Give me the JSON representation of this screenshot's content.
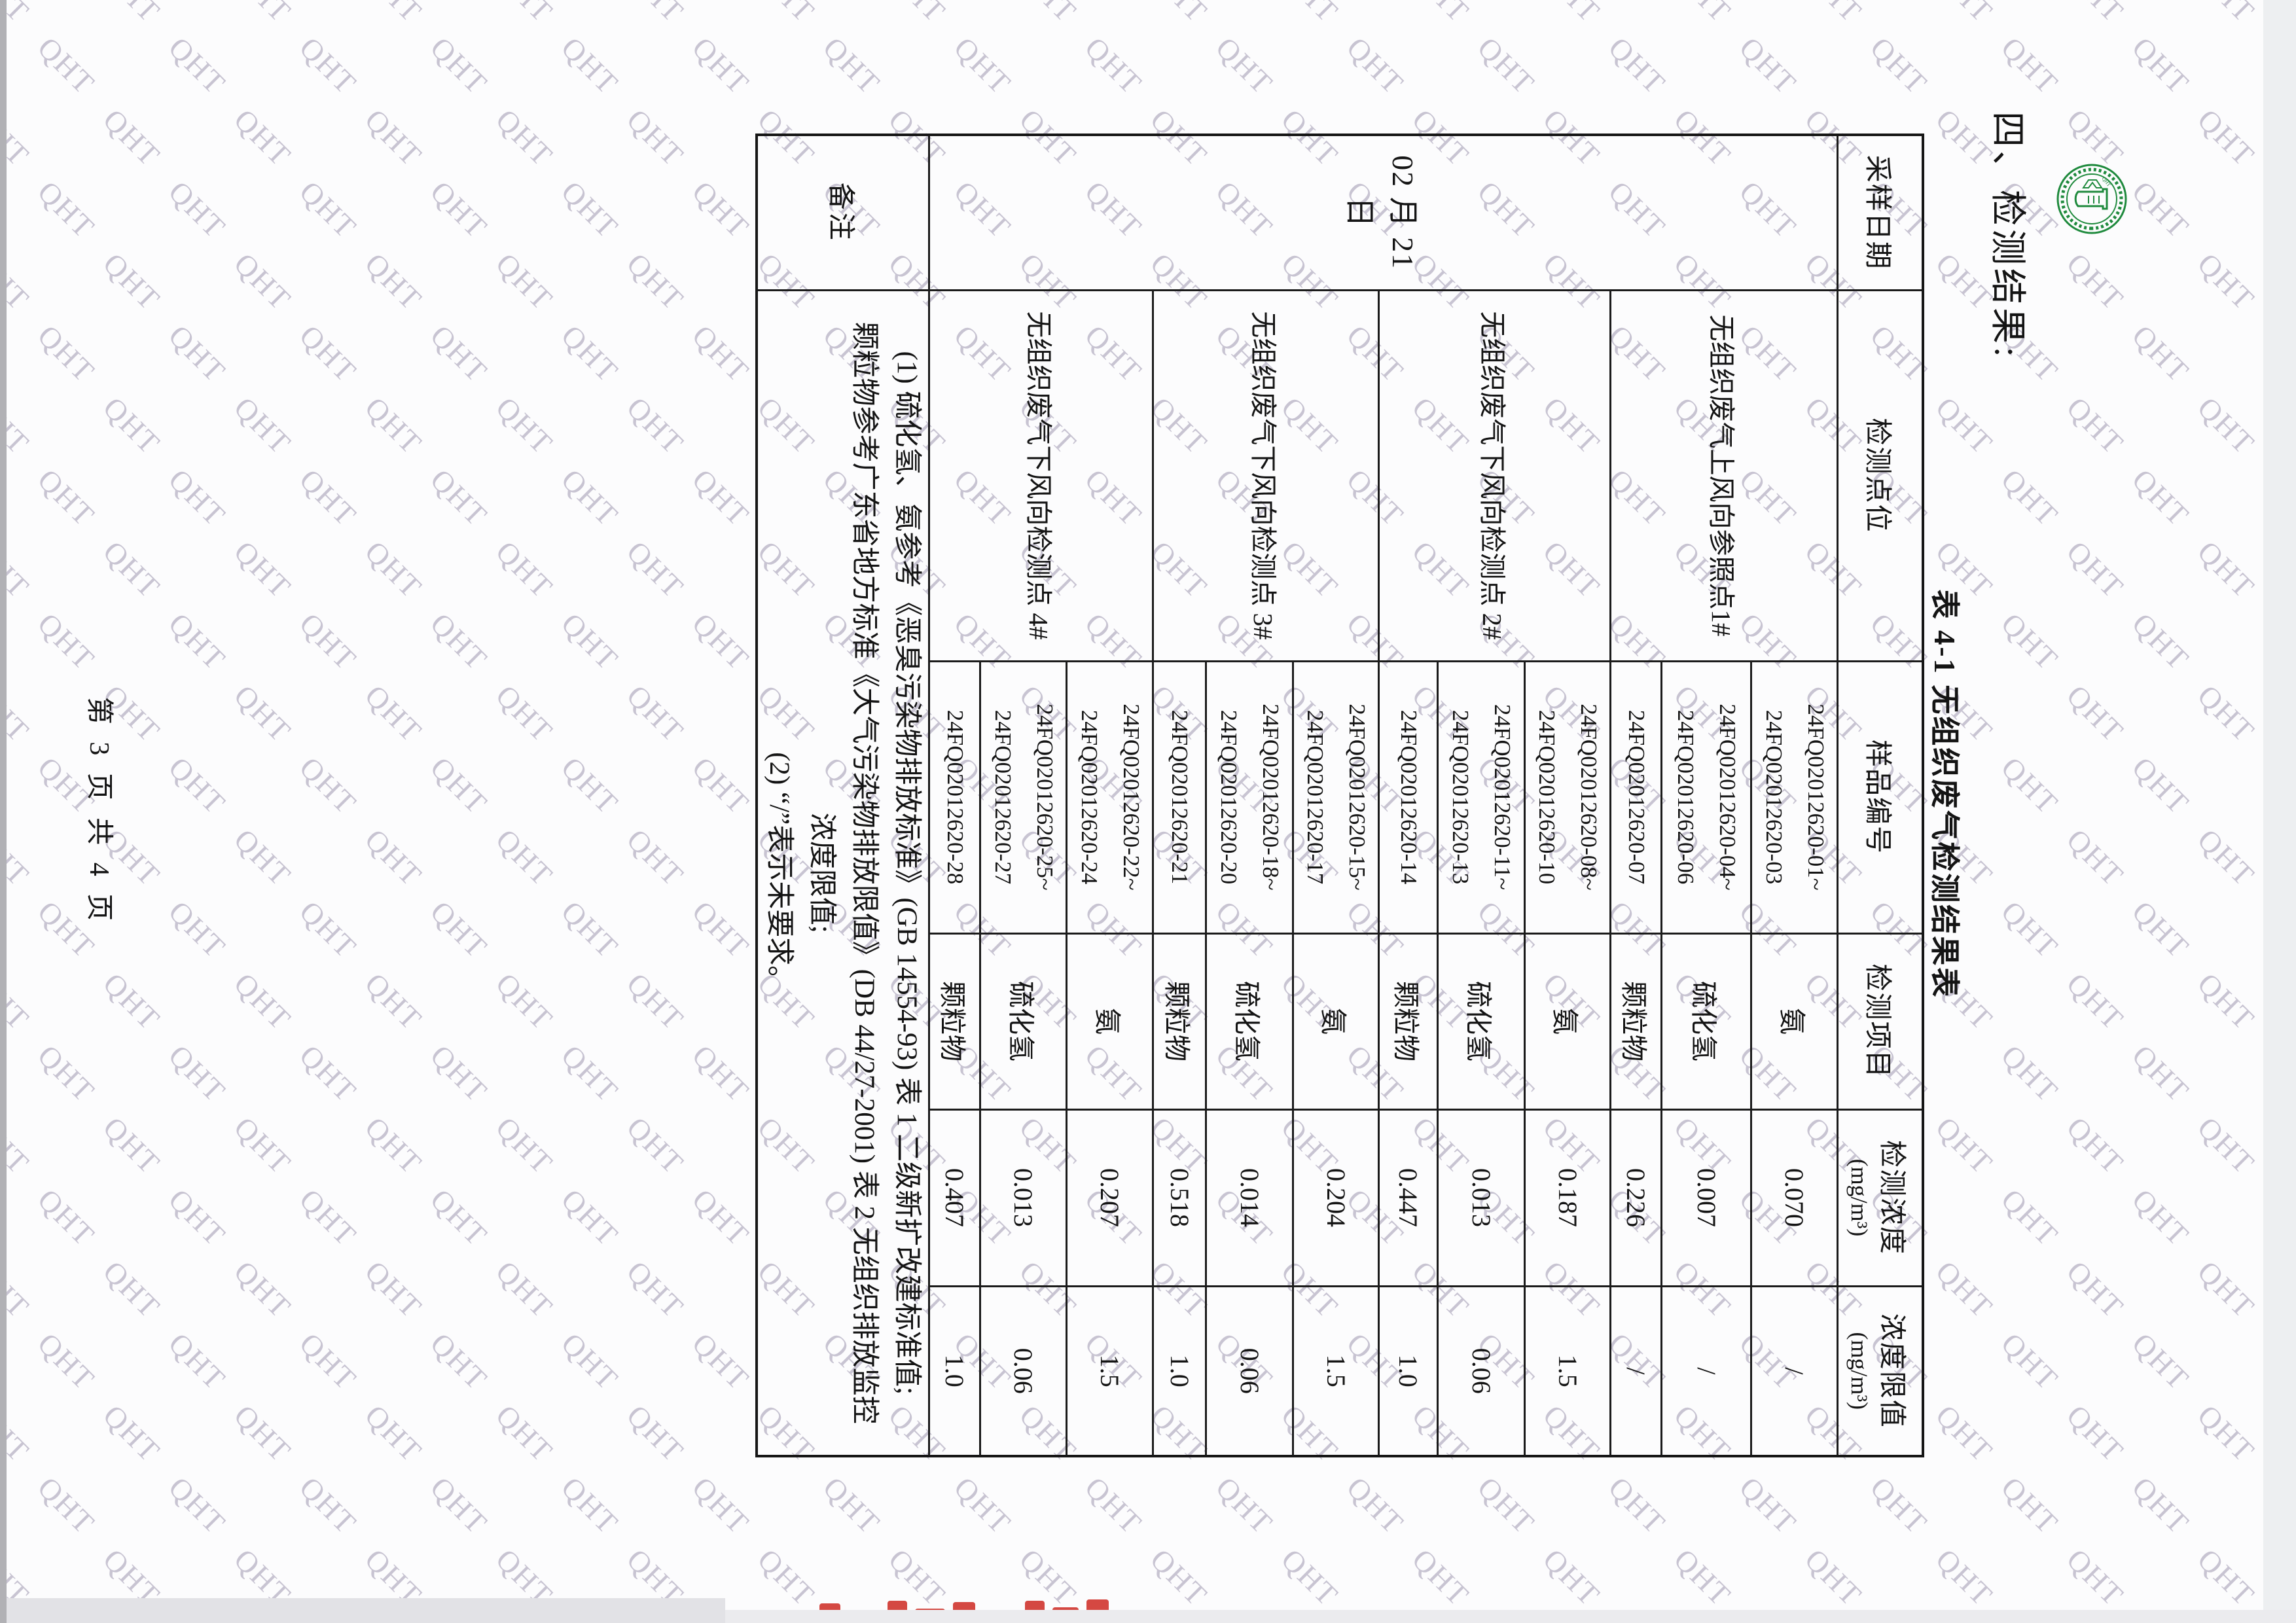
{
  "page": {
    "watermark": "QHT",
    "title": "四、检测结果:",
    "caption": "表 4-1  无组织废气检测结果表",
    "footer": "第 3 页 共 4 页"
  },
  "seal": {
    "letters": "QHT",
    "color": "#1f8a3d"
  },
  "stamp_color": "#cf2f28",
  "table": {
    "headers": [
      {
        "label": "采样日期",
        "unit": ""
      },
      {
        "label": "检测点位",
        "unit": ""
      },
      {
        "label": "样品编号",
        "unit": ""
      },
      {
        "label": "检测项目",
        "unit": ""
      },
      {
        "label": "检测浓度",
        "unit": "(mg/m³)"
      },
      {
        "label": "浓度限值",
        "unit": "(mg/m³)"
      }
    ],
    "sampling_date": "02 月 21 日",
    "groups": [
      {
        "location": "无组织废气上风向参照点1#",
        "entries": [
          {
            "sample_lines": [
              "24FQ02012620-01~",
              "24FQ02012620-03"
            ],
            "item": "氨",
            "concentration": "0.070",
            "limit": "/"
          },
          {
            "sample_lines": [
              "24FQ02012620-04~",
              "24FQ02012620-06"
            ],
            "item": "硫化氢",
            "concentration": "0.007",
            "limit": "/"
          },
          {
            "sample_lines": [
              "24FQ02012620-07"
            ],
            "item": "颗粒物",
            "concentration": "0.226",
            "limit": "/"
          }
        ]
      },
      {
        "location": "无组织废气下风向检测点 2#",
        "entries": [
          {
            "sample_lines": [
              "24FQ02012620-08~",
              "24FQ02012620-10"
            ],
            "item": "氨",
            "concentration": "0.187",
            "limit": "1.5"
          },
          {
            "sample_lines": [
              "24FQ02012620-11~",
              "24FQ02012620-13"
            ],
            "item": "硫化氢",
            "concentration": "0.013",
            "limit": "0.06"
          },
          {
            "sample_lines": [
              "24FQ02012620-14"
            ],
            "item": "颗粒物",
            "concentration": "0.447",
            "limit": "1.0"
          }
        ]
      },
      {
        "location": "无组织废气下风向检测点 3#",
        "entries": [
          {
            "sample_lines": [
              "24FQ02012620-15~",
              "24FQ02012620-17"
            ],
            "item": "氨",
            "concentration": "0.204",
            "limit": "1.5"
          },
          {
            "sample_lines": [
              "24FQ02012620-18~",
              "24FQ02012620-20"
            ],
            "item": "硫化氢",
            "concentration": "0.014",
            "limit": "0.06"
          },
          {
            "sample_lines": [
              "24FQ02012620-21"
            ],
            "item": "颗粒物",
            "concentration": "0.518",
            "limit": "1.0"
          }
        ]
      },
      {
        "location": "无组织废气下风向检测点 4#",
        "entries": [
          {
            "sample_lines": [
              "24FQ02012620-22~",
              "24FQ02012620-24"
            ],
            "item": "氨",
            "concentration": "0.207",
            "limit": "1.5"
          },
          {
            "sample_lines": [
              "24FQ02012620-25~",
              "24FQ02012620-27"
            ],
            "item": "硫化氢",
            "concentration": "0.013",
            "limit": "0.06"
          },
          {
            "sample_lines": [
              "24FQ02012620-28"
            ],
            "item": "颗粒物",
            "concentration": "0.407",
            "limit": "1.0"
          }
        ]
      }
    ],
    "remark_label": "备注",
    "remark_lines": [
      "(1) 硫化氢、氨参考《恶臭污染物排放标准》(GB 14554-93) 表 1 二级新扩改建标准值;",
      "颗粒物参考广东省地方标准《大气污染物排放限值》(DB 44/27-2001) 表 2 无组织排放监控",
      "浓度限值;",
      "(2) “/”表示未要求。"
    ]
  }
}
